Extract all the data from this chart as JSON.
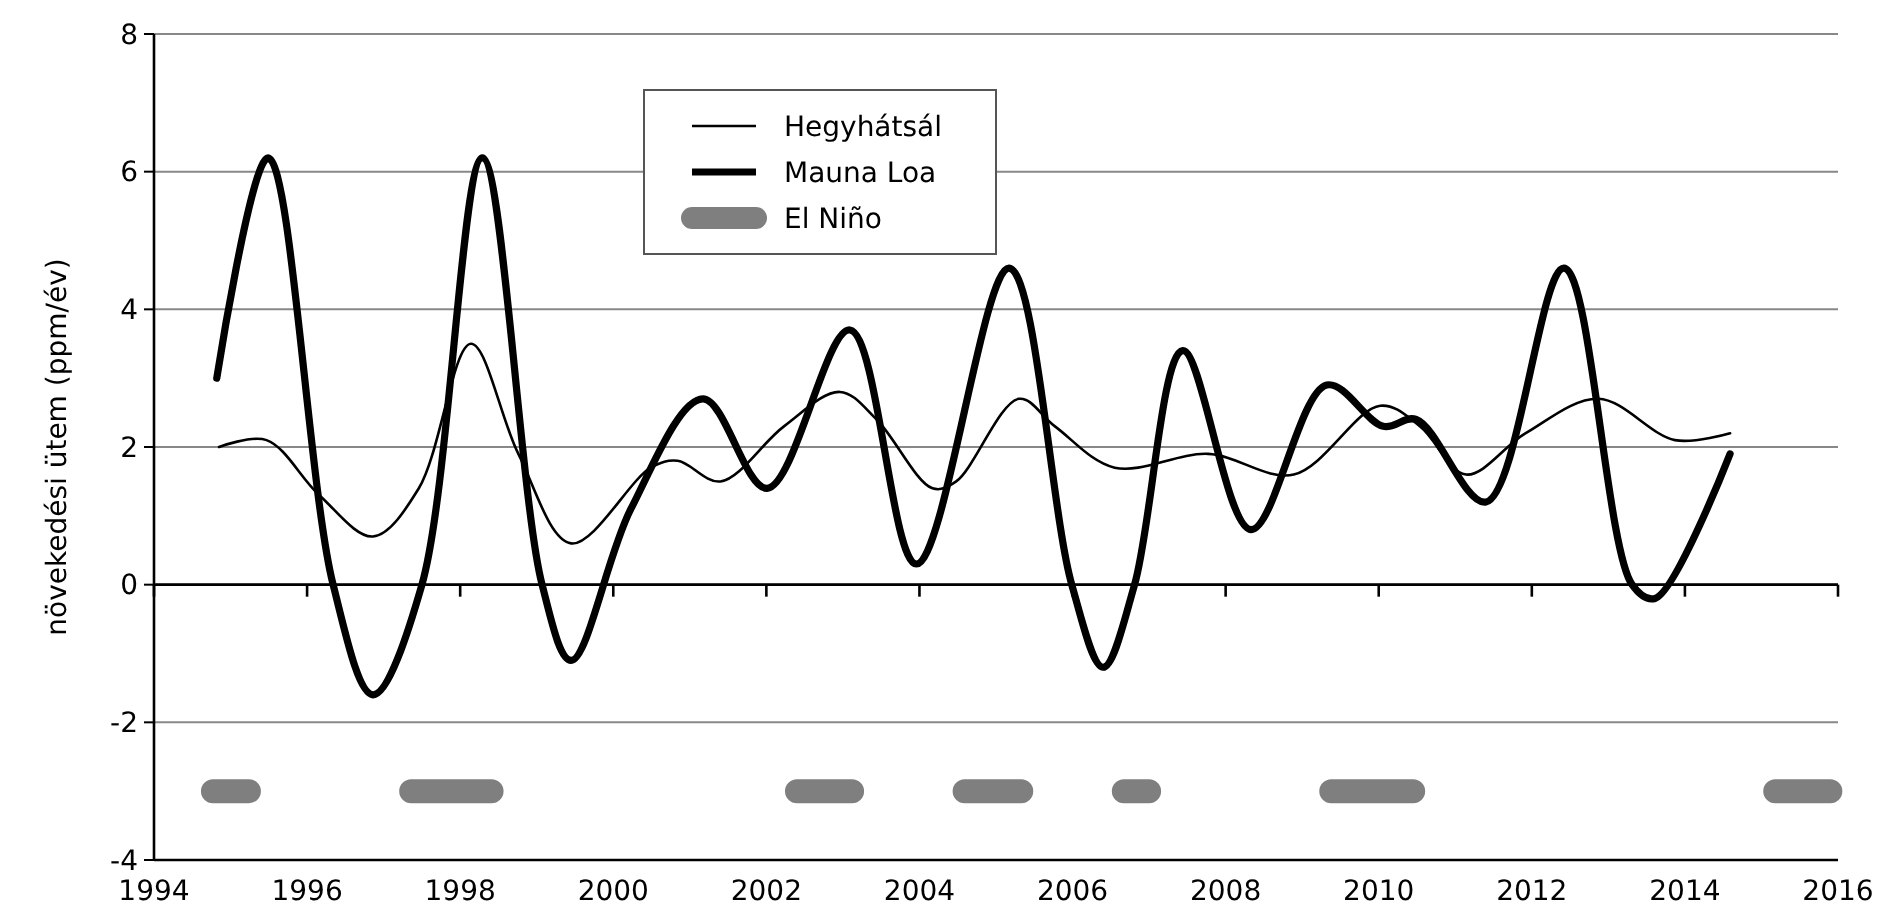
{
  "chart_data": {
    "type": "line",
    "ylabel": "növekedési ütem (ppm/év)",
    "xlim": [
      1994,
      2016
    ],
    "xticks": [
      1994,
      1996,
      1998,
      2000,
      2002,
      2004,
      2006,
      2008,
      2010,
      2012,
      2014,
      2016
    ],
    "ylim": [
      -4,
      8
    ],
    "yticks": [
      -4,
      -2,
      0,
      2,
      4,
      6,
      8
    ],
    "grid": "y",
    "legend": "top",
    "line_style": "solid",
    "marker": "none",
    "series": [
      {
        "name": "Hegyhátsál",
        "color": "#000000",
        "x": [
          1994.85,
          1995.47,
          1996.16,
          1996.86,
          1997.46,
          1998.14,
          1998.76,
          1999.45,
          2000.49,
          2000.84,
          2001.4,
          2002.23,
          2002.96,
          2003.44,
          2004.17,
          2004.48,
          2005.3,
          2005.77,
          2006.55,
          2007.77,
          2008.89,
          2010.02,
          2010.54,
          2011.14,
          2011.92,
          2012.87,
          2013.87,
          2014.59
        ],
        "values": [
          2.0,
          2.1,
          1.3,
          0.7,
          1.4,
          3.5,
          1.9,
          0.6,
          1.7,
          1.8,
          1.5,
          2.3,
          2.8,
          2.4,
          1.4,
          1.5,
          2.7,
          2.3,
          1.7,
          1.9,
          1.6,
          2.6,
          2.3,
          1.6,
          2.2,
          2.7,
          2.1,
          2.2
        ]
      },
      {
        "name": "Mauna Loa",
        "color": "#000000",
        "x": [
          1994.82,
          1995.49,
          1996.34,
          1996.86,
          1997.5,
          1998.29,
          1999.07,
          1999.45,
          2000.23,
          2001.17,
          2002.01,
          2003.09,
          2003.96,
          2005.17,
          2005.99,
          2006.4,
          2006.81,
          2007.44,
          2008.33,
          2009.32,
          2010.06,
          2010.49,
          2011.4,
          2012.42,
          2013.31,
          2013.61,
          2014.59
        ],
        "values": [
          3.0,
          6.2,
          0.0,
          -1.6,
          0.0,
          6.2,
          0.0,
          -1.1,
          1.1,
          2.7,
          1.4,
          3.7,
          0.3,
          4.6,
          0.0,
          -1.2,
          0.0,
          3.4,
          0.8,
          2.9,
          2.3,
          2.4,
          1.2,
          4.6,
          0.0,
          -0.2,
          1.9
        ]
      },
      {
        "name": "El Niño",
        "color": "#7f7f7f",
        "x": [
          1994.77,
          1995.24,
          1996,
          1997.36,
          1998.41,
          2000,
          2002.4,
          2003.12,
          2004,
          2004.59,
          2005.33,
          2006,
          2006.67,
          2007.0,
          2008,
          2009.38,
          2010.45,
          2012,
          2015.18,
          2015.9
        ],
        "values": [
          -3,
          -3,
          null,
          -3,
          -3,
          null,
          -3,
          -3,
          null,
          -3,
          -3,
          null,
          -3,
          -3,
          null,
          -3,
          -3,
          null,
          -3,
          -3
        ]
      }
    ]
  }
}
